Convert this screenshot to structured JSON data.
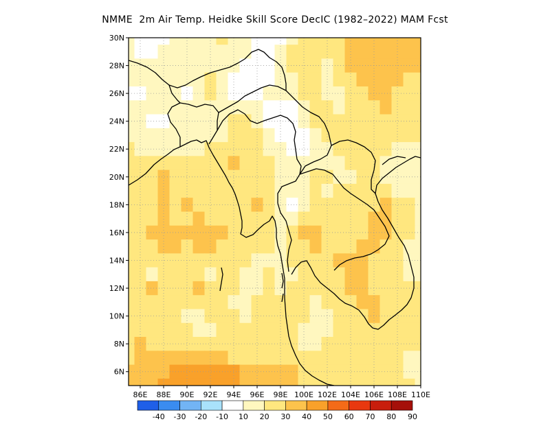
{
  "title": "NMME  2m Air Temp. Heidke Skill Score DecIC (1982–2022) MAM Fcst",
  "chart_data": {
    "type": "heatmap",
    "projection": "lon-lat",
    "xlim": [
      85,
      110
    ],
    "ylim": [
      5,
      30
    ],
    "grid": "dotted",
    "x_ticks": [
      "86E",
      "88E",
      "90E",
      "92E",
      "94E",
      "96E",
      "98E",
      "100E",
      "102E",
      "104E",
      "106E",
      "108E",
      "110E"
    ],
    "y_ticks": [
      "6N",
      "8N",
      "10N",
      "12N",
      "14N",
      "16N",
      "18N",
      "20N",
      "22N",
      "24N",
      "26N",
      "28N",
      "30N"
    ],
    "x_tick_values": [
      86,
      88,
      90,
      92,
      94,
      96,
      98,
      100,
      102,
      104,
      106,
      108,
      110
    ],
    "y_tick_values": [
      6,
      8,
      10,
      12,
      14,
      16,
      18,
      20,
      22,
      24,
      26,
      28,
      30
    ],
    "colorbar": {
      "labels": [
        "-40",
        "-30",
        "-20",
        "-10",
        "10",
        "20",
        "30",
        "40",
        "50",
        "60",
        "70",
        "80",
        "90"
      ],
      "colors": [
        "#1f5fe8",
        "#3a8cf0",
        "#72b4f5",
        "#a9e2fb",
        "#ffffff",
        "#fff7bf",
        "#ffe77f",
        "#fdc34c",
        "#f9a12a",
        "#f46b18",
        "#e8380f",
        "#c81e0c",
        "#a5100a"
      ]
    },
    "field_values": {
      "lon": [
        85,
        86,
        87,
        88,
        89,
        90,
        91,
        92,
        93,
        94,
        95,
        96,
        97,
        98,
        99,
        100,
        101,
        102,
        103,
        104,
        105,
        106,
        107,
        108,
        109,
        110
      ],
      "lat_descending": [
        30,
        29,
        28,
        27,
        26,
        25,
        24,
        23,
        22,
        21,
        20,
        19,
        18,
        17,
        16,
        15,
        14,
        13,
        12,
        11,
        10,
        9,
        8,
        7,
        6,
        5
      ],
      "rows": [
        [
          20,
          10,
          10,
          10,
          20,
          20,
          20,
          20,
          30,
          20,
          20,
          10,
          10,
          10,
          20,
          30,
          30,
          30,
          30,
          40,
          40,
          40,
          40,
          40,
          40,
          40
        ],
        [
          20,
          10,
          10,
          20,
          20,
          20,
          20,
          20,
          20,
          20,
          20,
          10,
          10,
          20,
          30,
          30,
          30,
          30,
          30,
          40,
          40,
          40,
          40,
          40,
          40,
          40
        ],
        [
          20,
          20,
          20,
          20,
          20,
          20,
          20,
          20,
          20,
          20,
          10,
          10,
          10,
          20,
          30,
          30,
          30,
          20,
          30,
          40,
          40,
          40,
          40,
          40,
          40,
          40
        ],
        [
          20,
          20,
          20,
          20,
          20,
          20,
          20,
          30,
          20,
          10,
          10,
          10,
          10,
          20,
          20,
          30,
          30,
          20,
          30,
          30,
          40,
          40,
          40,
          40,
          30,
          30
        ],
        [
          10,
          10,
          20,
          20,
          20,
          10,
          20,
          30,
          20,
          10,
          10,
          10,
          20,
          20,
          20,
          30,
          30,
          20,
          20,
          30,
          30,
          40,
          40,
          30,
          30,
          30
        ],
        [
          20,
          20,
          20,
          20,
          20,
          20,
          20,
          20,
          20,
          20,
          20,
          20,
          10,
          10,
          10,
          20,
          30,
          30,
          20,
          30,
          30,
          30,
          40,
          30,
          30,
          30
        ],
        [
          20,
          20,
          10,
          10,
          20,
          20,
          20,
          20,
          20,
          30,
          30,
          20,
          10,
          10,
          10,
          20,
          30,
          30,
          30,
          30,
          30,
          30,
          30,
          30,
          30,
          30
        ],
        [
          20,
          20,
          20,
          20,
          20,
          20,
          20,
          20,
          20,
          30,
          30,
          30,
          20,
          10,
          10,
          10,
          20,
          30,
          30,
          30,
          30,
          30,
          30,
          30,
          30,
          30
        ],
        [
          30,
          20,
          20,
          20,
          20,
          20,
          20,
          30,
          30,
          30,
          30,
          30,
          20,
          20,
          10,
          10,
          20,
          20,
          30,
          30,
          30,
          30,
          30,
          20,
          20,
          20
        ],
        [
          30,
          30,
          30,
          30,
          30,
          30,
          30,
          30,
          30,
          40,
          30,
          30,
          30,
          20,
          20,
          20,
          20,
          20,
          20,
          30,
          30,
          30,
          20,
          20,
          20,
          20
        ],
        [
          30,
          30,
          30,
          40,
          30,
          30,
          30,
          30,
          30,
          30,
          30,
          30,
          30,
          20,
          20,
          20,
          30,
          30,
          20,
          20,
          30,
          30,
          20,
          20,
          20,
          20
        ],
        [
          30,
          30,
          30,
          40,
          30,
          30,
          30,
          30,
          30,
          30,
          30,
          30,
          30,
          20,
          20,
          20,
          30,
          20,
          30,
          30,
          30,
          30,
          30,
          20,
          20,
          20
        ],
        [
          30,
          30,
          30,
          40,
          30,
          40,
          30,
          30,
          30,
          30,
          30,
          40,
          30,
          20,
          10,
          20,
          30,
          30,
          30,
          30,
          30,
          30,
          40,
          30,
          30,
          20
        ],
        [
          30,
          30,
          30,
          40,
          30,
          30,
          40,
          30,
          30,
          30,
          30,
          30,
          30,
          20,
          20,
          30,
          30,
          30,
          30,
          30,
          30,
          40,
          40,
          30,
          30,
          20
        ],
        [
          30,
          30,
          40,
          40,
          40,
          40,
          40,
          40,
          40,
          30,
          30,
          30,
          30,
          20,
          30,
          40,
          40,
          30,
          30,
          30,
          30,
          40,
          40,
          30,
          30,
          20
        ],
        [
          30,
          30,
          30,
          40,
          40,
          30,
          40,
          40,
          30,
          30,
          30,
          30,
          30,
          20,
          30,
          30,
          40,
          30,
          30,
          30,
          40,
          40,
          30,
          30,
          20,
          20
        ],
        [
          30,
          30,
          30,
          30,
          30,
          30,
          30,
          30,
          30,
          30,
          30,
          20,
          20,
          20,
          30,
          30,
          30,
          30,
          40,
          40,
          40,
          30,
          30,
          30,
          20,
          20
        ],
        [
          30,
          30,
          20,
          30,
          30,
          30,
          30,
          20,
          30,
          30,
          20,
          20,
          30,
          20,
          20,
          30,
          30,
          30,
          30,
          40,
          40,
          30,
          30,
          30,
          20,
          20
        ],
        [
          30,
          30,
          40,
          30,
          30,
          30,
          40,
          30,
          30,
          30,
          20,
          20,
          30,
          20,
          30,
          30,
          30,
          30,
          30,
          40,
          40,
          30,
          30,
          30,
          30,
          30
        ],
        [
          30,
          30,
          30,
          30,
          30,
          30,
          30,
          30,
          30,
          20,
          20,
          30,
          30,
          30,
          30,
          30,
          20,
          30,
          30,
          30,
          40,
          40,
          30,
          30,
          30,
          30
        ],
        [
          30,
          30,
          30,
          30,
          30,
          20,
          20,
          30,
          30,
          30,
          20,
          30,
          30,
          30,
          30,
          30,
          20,
          20,
          30,
          30,
          30,
          40,
          30,
          30,
          30,
          30
        ],
        [
          30,
          30,
          30,
          30,
          30,
          30,
          20,
          20,
          30,
          30,
          30,
          30,
          30,
          30,
          30,
          20,
          20,
          20,
          30,
          30,
          30,
          30,
          30,
          30,
          30,
          30
        ],
        [
          30,
          40,
          30,
          30,
          30,
          30,
          30,
          30,
          30,
          30,
          30,
          30,
          30,
          30,
          30,
          20,
          20,
          30,
          30,
          30,
          30,
          30,
          30,
          30,
          30,
          30
        ],
        [
          30,
          40,
          40,
          40,
          40,
          40,
          40,
          40,
          40,
          30,
          30,
          30,
          30,
          30,
          30,
          30,
          30,
          30,
          30,
          30,
          30,
          30,
          30,
          30,
          20,
          20
        ],
        [
          40,
          40,
          40,
          40,
          50,
          50,
          50,
          50,
          50,
          50,
          40,
          40,
          40,
          40,
          40,
          30,
          30,
          30,
          30,
          30,
          30,
          30,
          30,
          30,
          20,
          20
        ],
        [
          40,
          40,
          40,
          50,
          50,
          50,
          50,
          50,
          50,
          50,
          40,
          40,
          40,
          40,
          40,
          30,
          30,
          30,
          30,
          30,
          30,
          30,
          30,
          30,
          30,
          20
        ]
      ]
    }
  }
}
